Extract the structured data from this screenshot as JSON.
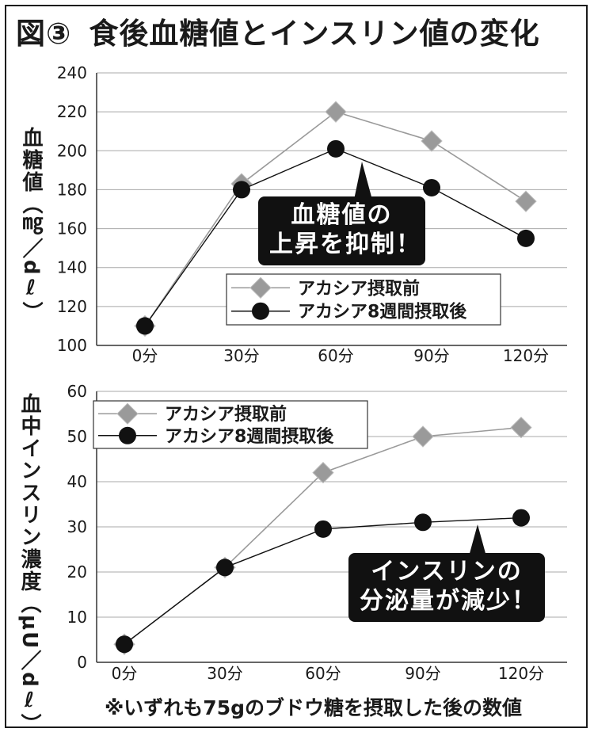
{
  "title": {
    "figure": "図③",
    "text": "食後血糖値とインスリン値の変化"
  },
  "footnote": "※いずれも75gのブドウ糖を摂取した後の数値",
  "colors": {
    "before": "#9a9a9a",
    "after": "#111111",
    "grid": "#a8a8a8"
  },
  "chart_data": [
    {
      "type": "line",
      "ylabel": "血糖値（㎎／dℓ）",
      "categories": [
        "0分",
        "30分",
        "60分",
        "90分",
        "120分"
      ],
      "ylim": [
        100,
        240
      ],
      "yticks": [
        100,
        120,
        140,
        160,
        180,
        200,
        220,
        240
      ],
      "grid": true,
      "legend": "center-right",
      "series": [
        {
          "name": "アカシア摂取前",
          "marker": "diamond",
          "values": [
            110,
            183,
            220,
            205,
            174
          ]
        },
        {
          "name": "アカシア8週間摂取後",
          "marker": "circle",
          "values": [
            110,
            180,
            201,
            181,
            155
          ]
        }
      ],
      "annotation": [
        "血糖値の",
        "上昇を抑制！"
      ]
    },
    {
      "type": "line",
      "ylabel": "血中インスリン濃度（μU／dℓ）",
      "categories": [
        "0分",
        "30分",
        "60分",
        "90分",
        "120分"
      ],
      "ylim": [
        0,
        60
      ],
      "yticks": [
        0,
        10,
        20,
        30,
        40,
        50,
        60
      ],
      "grid": true,
      "legend": "top-left",
      "series": [
        {
          "name": "アカシア摂取前",
          "marker": "diamond",
          "values": [
            4,
            21,
            42,
            50,
            52
          ]
        },
        {
          "name": "アカシア8週間摂取後",
          "marker": "circle",
          "values": [
            4,
            21,
            29.5,
            31,
            32
          ]
        }
      ],
      "annotation": [
        "インスリンの",
        "分泌量が減少！"
      ]
    }
  ]
}
